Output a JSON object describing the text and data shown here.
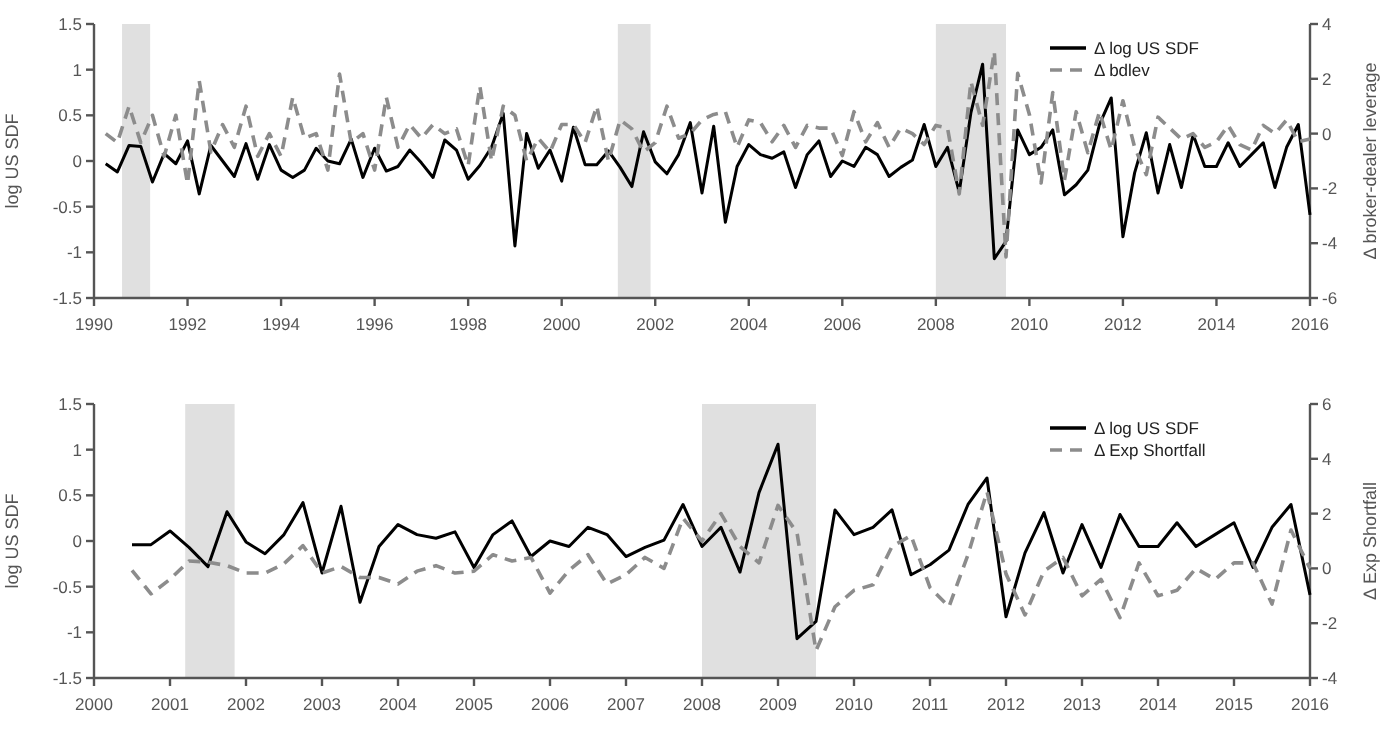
{
  "chart_data": [
    {
      "type": "line",
      "ylabel": "log US SDF",
      "y2label": "Δ broker-dealer leverage",
      "xlim": [
        1990,
        2016
      ],
      "xticks": [
        1990,
        1992,
        1994,
        1996,
        1998,
        2000,
        2002,
        2004,
        2006,
        2008,
        2010,
        2012,
        2014,
        2016
      ],
      "ylim": [
        -1.5,
        1.5
      ],
      "yticks": [
        -1.5,
        -1,
        -0.5,
        0,
        0.5,
        1,
        1.5
      ],
      "y2lim": [
        -6,
        4
      ],
      "y2ticks": [
        -6,
        -4,
        -2,
        0,
        2,
        4
      ],
      "grid": false,
      "legend": "top right",
      "x": [
        1990.25,
        1990.5,
        1990.75,
        1991,
        1991.25,
        1991.5,
        1991.75,
        1992,
        1992.25,
        1992.5,
        1992.75,
        1993,
        1993.25,
        1993.5,
        1993.75,
        1994,
        1994.25,
        1994.5,
        1994.75,
        1995,
        1995.25,
        1995.5,
        1995.75,
        1996,
        1996.25,
        1996.5,
        1996.75,
        1997,
        1997.25,
        1997.5,
        1997.75,
        1998,
        1998.25,
        1998.5,
        1998.75,
        1999,
        1999.25,
        1999.5,
        1999.75,
        2000,
        2000.25,
        2000.5,
        2000.75,
        2001,
        2001.25,
        2001.5,
        2001.75,
        2002,
        2002.25,
        2002.5,
        2002.75,
        2003,
        2003.25,
        2003.5,
        2003.75,
        2004,
        2004.25,
        2004.5,
        2004.75,
        2005,
        2005.25,
        2005.5,
        2005.75,
        2006,
        2006.25,
        2006.5,
        2006.75,
        2007,
        2007.25,
        2007.5,
        2007.75,
        2008,
        2008.25,
        2008.5,
        2008.75,
        2009,
        2009.25,
        2009.5,
        2009.75,
        2010,
        2010.25,
        2010.5,
        2010.75,
        2011,
        2011.25,
        2011.5,
        2011.75,
        2012,
        2012.25,
        2012.5,
        2012.75,
        2013,
        2013.25,
        2013.5,
        2013.75,
        2014,
        2014.25,
        2014.5,
        2014.75,
        2015,
        2015.25,
        2015.5,
        2015.75,
        2016
      ],
      "series": [
        {
          "name": "Δ log US SDF",
          "color": "#000000",
          "line_style": "solid",
          "values": [
            -0.03,
            -0.12,
            0.17,
            0.16,
            -0.23,
            0.08,
            -0.03,
            0.22,
            -0.36,
            0.17,
            0.0,
            -0.17,
            0.19,
            -0.2,
            0.18,
            -0.1,
            -0.18,
            -0.1,
            0.14,
            0.0,
            -0.03,
            0.24,
            -0.18,
            0.14,
            -0.11,
            -0.06,
            0.12,
            -0.02,
            -0.18,
            0.23,
            0.12,
            -0.2,
            -0.05,
            0.15,
            0.52,
            -0.93,
            0.3,
            -0.08,
            0.12,
            -0.22,
            0.37,
            -0.04,
            -0.04,
            0.11,
            -0.07,
            -0.28,
            0.32,
            -0.01,
            -0.14,
            0.07,
            0.42,
            -0.35,
            0.38,
            -0.67,
            -0.06,
            0.18,
            0.07,
            0.03,
            0.1,
            -0.29,
            0.07,
            0.22,
            -0.17,
            0.0,
            -0.06,
            0.15,
            0.07,
            -0.17,
            -0.07,
            0.01,
            0.4,
            -0.06,
            0.15,
            -0.34,
            0.53,
            1.06,
            -1.07,
            -0.88,
            0.34,
            0.07,
            0.15,
            0.34,
            -0.37,
            -0.26,
            -0.1,
            0.4,
            0.69,
            -0.83,
            -0.13,
            0.31,
            -0.35,
            0.18,
            -0.29,
            0.29,
            -0.06,
            -0.06,
            0.2,
            -0.06,
            0.07,
            0.2,
            -0.29,
            0.15,
            0.4,
            -0.59
          ]
        },
        {
          "name": "Δ bdlev",
          "color": "#8c8c8c",
          "line_style": "dashed",
          "axis": "y2",
          "values": [
            0.0,
            -0.33,
            1.0,
            -0.33,
            0.67,
            -0.83,
            0.67,
            -1.83,
            1.93,
            -0.67,
            0.33,
            -0.5,
            1.0,
            -0.83,
            0.0,
            -0.83,
            1.33,
            -0.17,
            0.0,
            -1.33,
            2.17,
            -0.33,
            0.0,
            -1.33,
            1.33,
            -0.5,
            0.33,
            -0.17,
            0.33,
            0.0,
            0.17,
            -1.17,
            1.73,
            -1.0,
            1.0,
            0.67,
            -1.0,
            -0.17,
            -0.67,
            0.33,
            0.33,
            -0.33,
            1.0,
            -1.0,
            0.5,
            0.17,
            -0.67,
            -0.33,
            1.0,
            -0.17,
            0.0,
            0.5,
            0.7,
            0.8,
            -0.5,
            0.5,
            0.4,
            -0.3,
            0.3,
            -0.5,
            0.3,
            0.2,
            0.2,
            -0.8,
            0.8,
            -0.3,
            0.4,
            -0.5,
            0.2,
            0.0,
            -0.4,
            0.3,
            0.2,
            -2.2,
            1.9,
            0.3,
            3.0,
            -4.5,
            2.2,
            0.7,
            -1.8,
            1.5,
            -1.7,
            0.8,
            -0.7,
            0.8,
            -0.6,
            1.2,
            -0.5,
            -1.5,
            0.6,
            0.2,
            -0.2,
            0.0,
            -0.5,
            -0.3,
            0.3,
            -0.4,
            -0.6,
            0.3,
            0.0,
            0.5,
            -0.3,
            -0.2
          ]
        }
      ],
      "bands": [
        {
          "axis": "x",
          "from": 1990.6,
          "to": 1991.2,
          "color": "#e0e0e0"
        },
        {
          "axis": "x",
          "from": 2001.2,
          "to": 2001.9,
          "color": "#e0e0e0"
        },
        {
          "axis": "x",
          "from": 2008,
          "to": 2009.5,
          "color": "#e0e0e0"
        }
      ]
    },
    {
      "type": "line",
      "ylabel": "log US SDF",
      "y2label": "Δ Exp Shortfall",
      "xlim": [
        2000,
        2016
      ],
      "xticks": [
        2000,
        2001,
        2002,
        2003,
        2004,
        2005,
        2006,
        2007,
        2008,
        2009,
        2010,
        2011,
        2012,
        2013,
        2014,
        2015,
        2016
      ],
      "ylim": [
        -1.5,
        1.5
      ],
      "yticks": [
        -1.5,
        -1,
        -0.5,
        0,
        0.5,
        1,
        1.5
      ],
      "y2lim": [
        -4,
        6
      ],
      "y2ticks": [
        -4,
        -2,
        0,
        2,
        4,
        6
      ],
      "grid": false,
      "legend": "top right",
      "x": [
        2000.5,
        2000.75,
        2001,
        2001.25,
        2001.5,
        2001.75,
        2002,
        2002.25,
        2002.5,
        2002.75,
        2003,
        2003.25,
        2003.5,
        2003.75,
        2004,
        2004.25,
        2004.5,
        2004.75,
        2005,
        2005.25,
        2005.5,
        2005.75,
        2006,
        2006.25,
        2006.5,
        2006.75,
        2007,
        2007.25,
        2007.5,
        2007.75,
        2008,
        2008.25,
        2008.5,
        2008.75,
        2009,
        2009.25,
        2009.5,
        2009.75,
        2010,
        2010.25,
        2010.5,
        2010.75,
        2011,
        2011.25,
        2011.5,
        2011.75,
        2012,
        2012.25,
        2012.5,
        2012.75,
        2013,
        2013.25,
        2013.5,
        2013.75,
        2014,
        2014.25,
        2014.5,
        2014.75,
        2015,
        2015.25,
        2015.5,
        2015.75,
        2016
      ],
      "series": [
        {
          "name": "Δ log US SDF",
          "color": "#000000",
          "line_style": "solid",
          "values": [
            -0.04,
            -0.04,
            0.11,
            -0.07,
            -0.28,
            0.32,
            -0.01,
            -0.14,
            0.07,
            0.42,
            -0.35,
            0.38,
            -0.67,
            -0.06,
            0.18,
            0.07,
            0.03,
            0.1,
            -0.29,
            0.07,
            0.22,
            -0.17,
            0.0,
            -0.06,
            0.15,
            0.07,
            -0.17,
            -0.07,
            0.01,
            0.4,
            -0.06,
            0.15,
            -0.34,
            0.53,
            1.06,
            -1.07,
            -0.88,
            0.34,
            0.07,
            0.15,
            0.34,
            -0.37,
            -0.26,
            -0.1,
            0.4,
            0.69,
            -0.83,
            -0.13,
            0.31,
            -0.35,
            0.18,
            -0.29,
            0.29,
            -0.06,
            -0.06,
            0.2,
            -0.06,
            0.07,
            0.2,
            -0.29,
            0.15,
            0.4,
            -0.59
          ]
        },
        {
          "name": "Δ Exp Shortfall",
          "color": "#8c8c8c",
          "line_style": "dashed",
          "axis": "y2",
          "values": [
            -0.07,
            -0.93,
            -0.4,
            0.27,
            0.23,
            0.1,
            -0.17,
            -0.17,
            0.17,
            0.83,
            -0.17,
            0.07,
            -0.33,
            -0.33,
            -0.57,
            -0.1,
            0.1,
            -0.17,
            -0.1,
            0.5,
            0.27,
            0.4,
            -0.9,
            -0.07,
            0.5,
            -0.57,
            -0.23,
            0.4,
            0.0,
            1.83,
            1.0,
            2.0,
            0.8,
            0.2,
            2.3,
            1.3,
            -3.0,
            -1.4,
            -0.8,
            -0.6,
            0.8,
            1.2,
            -0.7,
            -1.4,
            0.5,
            2.8,
            -0.2,
            -1.7,
            -0.1,
            0.4,
            -1.0,
            -0.4,
            -1.8,
            0.2,
            -1.0,
            -0.8,
            0.0,
            -0.4,
            0.2,
            0.2,
            -1.3,
            1.4,
            0.0
          ]
        }
      ],
      "bands": [
        {
          "axis": "x",
          "from": 2001.2,
          "to": 2001.85,
          "color": "#e0e0e0"
        },
        {
          "axis": "x",
          "from": 2008,
          "to": 2009.5,
          "color": "#e0e0e0"
        }
      ]
    }
  ]
}
